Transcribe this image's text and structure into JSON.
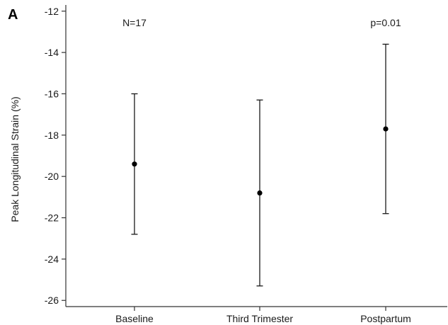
{
  "panel_label": "A",
  "chart_data": {
    "type": "scatter",
    "title": "",
    "xlabel": "",
    "ylabel": "Peak Longitudinal Strain (%)",
    "categories": [
      "Baseline",
      "Third Trimester",
      "Postpartum"
    ],
    "series": [
      {
        "means": [
          -19.4,
          -20.8,
          -17.7
        ],
        "upper": [
          -16.0,
          -16.3,
          -13.6
        ],
        "lower": [
          -22.8,
          -25.3,
          -21.8
        ]
      }
    ],
    "ylim": [
      -26.3,
      -11.7
    ],
    "yticks": [
      -12,
      -14,
      -16,
      -18,
      -20,
      -22,
      -24,
      -26
    ],
    "ytick_labels": [
      "-12",
      "-14",
      "-16",
      "-18",
      "-20",
      "-22",
      "-24",
      "-26"
    ],
    "grid": false,
    "annotations": [
      {
        "text": "N=17",
        "category": "Baseline"
      },
      {
        "text": "p=0.01",
        "category": "Postpartum"
      }
    ],
    "colors": {
      "marks": "#1a1a1a",
      "axis": "#333333"
    }
  }
}
